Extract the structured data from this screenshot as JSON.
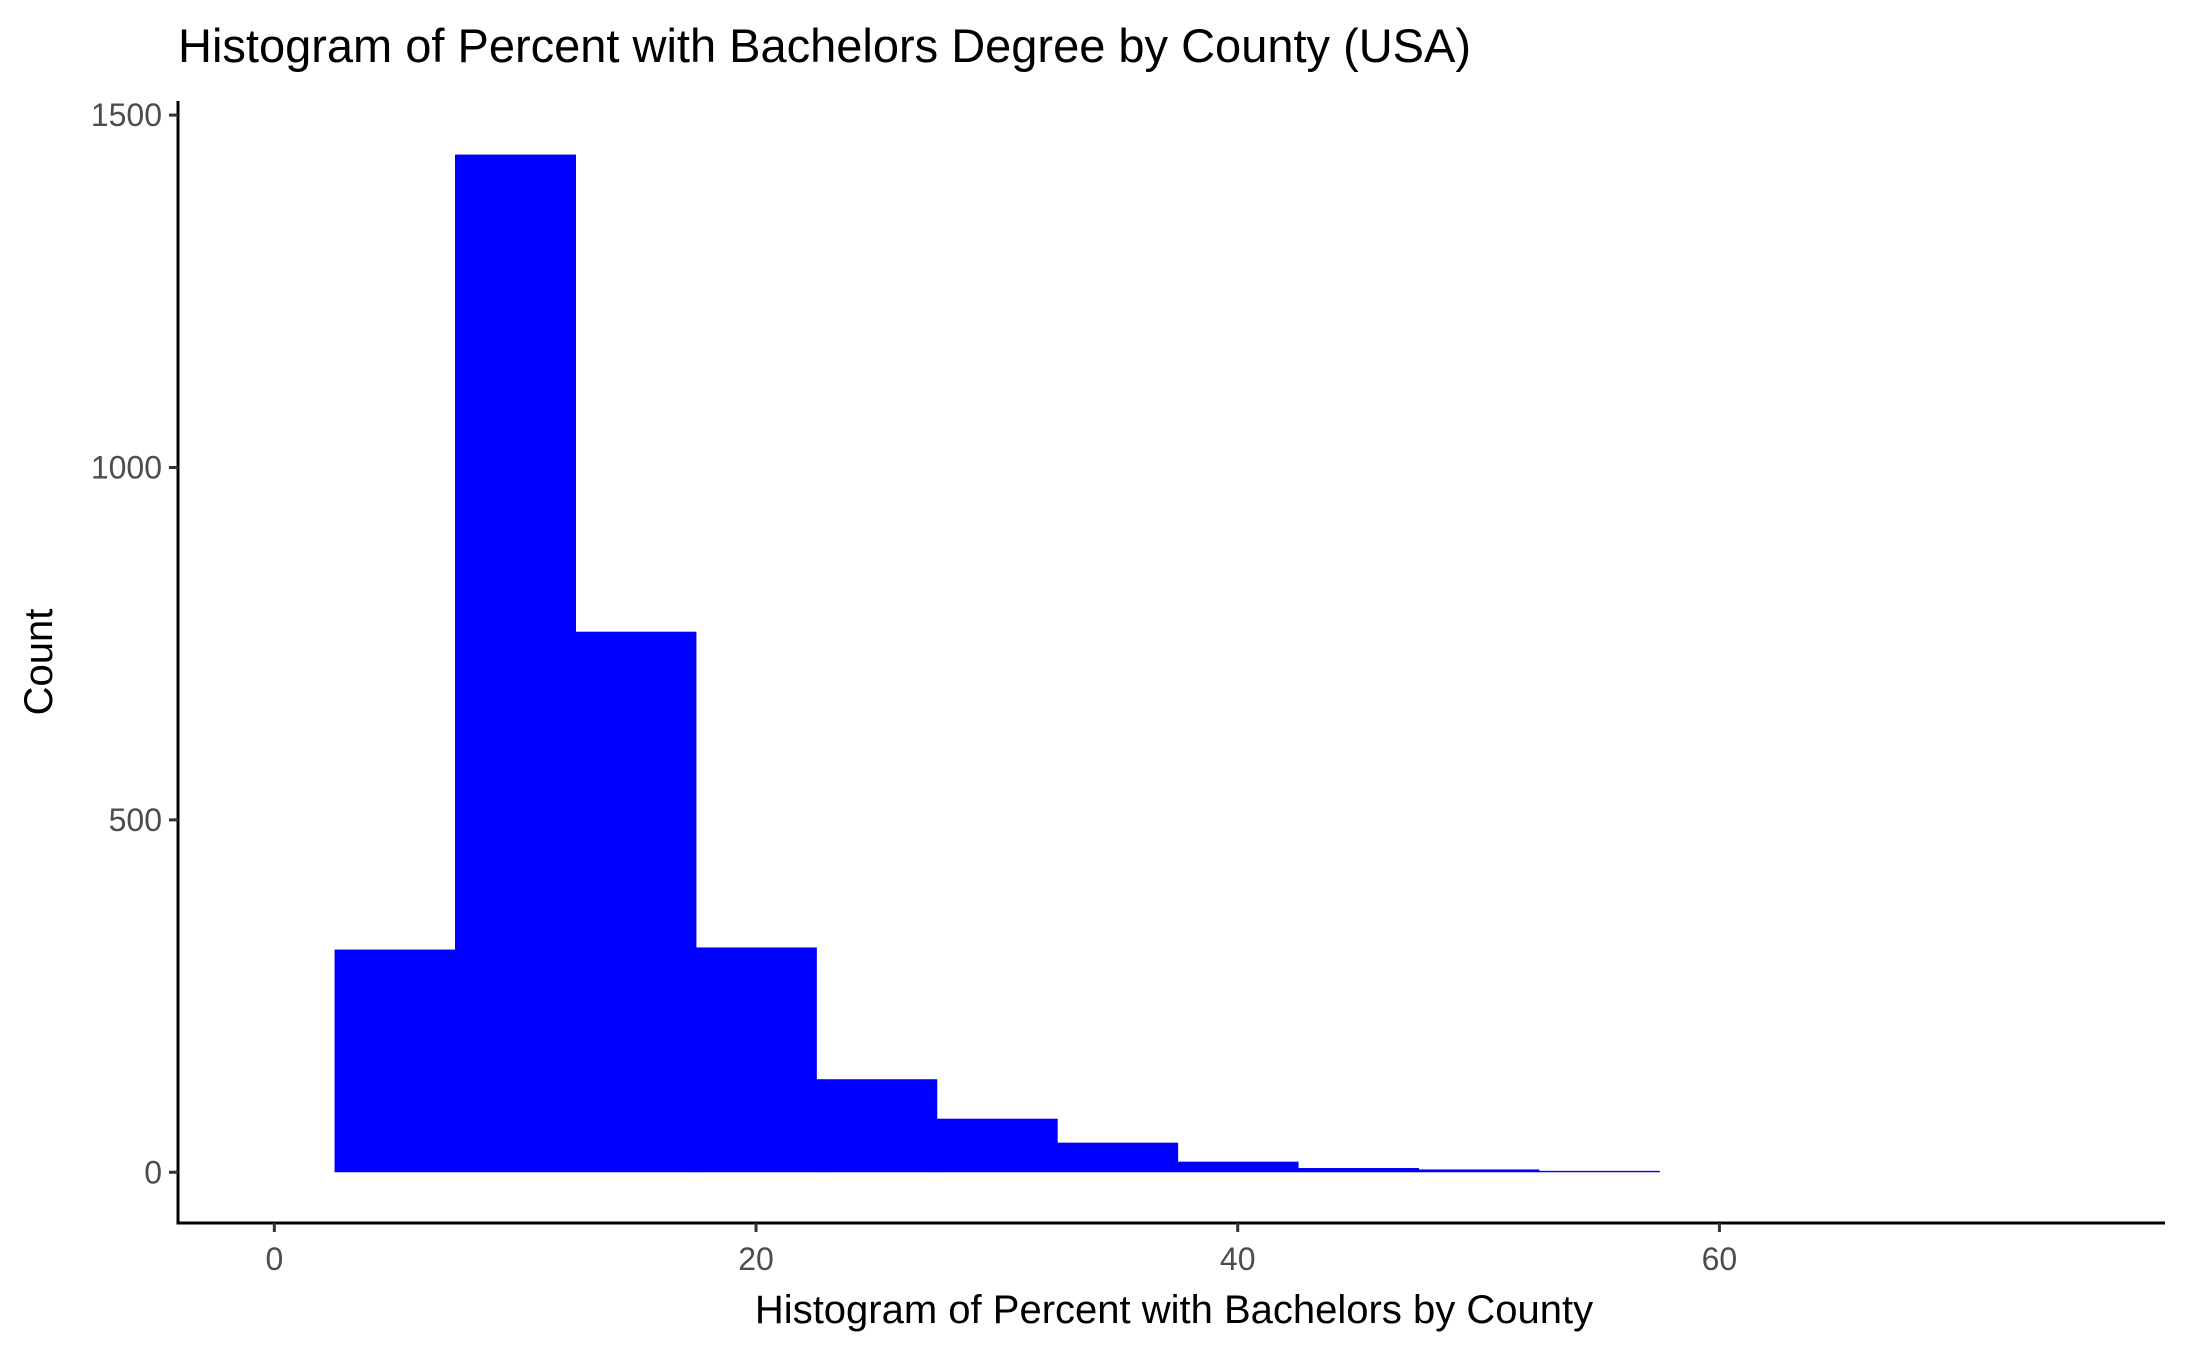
{
  "chart_data": {
    "type": "bar",
    "subtype": "histogram",
    "title": "Histogram of Percent with Bachelors Degree by County (USA)",
    "xlabel": "Histogram of Percent with Bachelors by County",
    "ylabel": "Count",
    "bar_color": "#0000ff",
    "bin_width": 5,
    "bins": [
      {
        "x_start": 2.5,
        "x_end": 7.5,
        "count": 316
      },
      {
        "x_start": 7.5,
        "x_end": 12.5,
        "count": 1444
      },
      {
        "x_start": 12.5,
        "x_end": 17.5,
        "count": 767
      },
      {
        "x_start": 17.5,
        "x_end": 22.5,
        "count": 319
      },
      {
        "x_start": 22.5,
        "x_end": 27.5,
        "count": 132
      },
      {
        "x_start": 27.5,
        "x_end": 32.5,
        "count": 76
      },
      {
        "x_start": 32.5,
        "x_end": 37.5,
        "count": 42
      },
      {
        "x_start": 37.5,
        "x_end": 42.5,
        "count": 15
      },
      {
        "x_start": 42.5,
        "x_end": 47.5,
        "count": 6
      },
      {
        "x_start": 47.5,
        "x_end": 52.5,
        "count": 4
      },
      {
        "x_start": 52.5,
        "x_end": 57.5,
        "count": 2
      }
    ],
    "xlim": [
      -4,
      78.5
    ],
    "ylim": [
      -72,
      1520
    ],
    "x_ticks": [
      0,
      20,
      40,
      60
    ],
    "x_tick_labels": [
      "0",
      "20",
      "40",
      "60"
    ],
    "y_ticks": [
      0,
      500,
      1000,
      1500
    ],
    "y_tick_labels": [
      "0",
      "500",
      "1000",
      "1500"
    ],
    "grid": false,
    "legend": "none"
  }
}
